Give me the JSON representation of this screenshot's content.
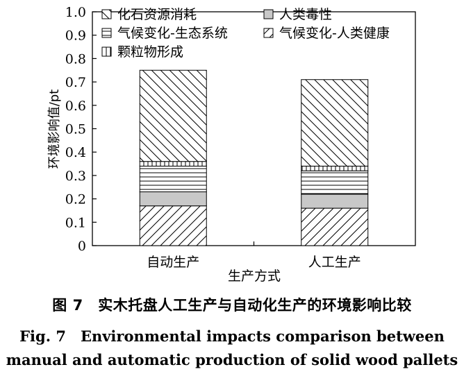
{
  "chart_data": {
    "type": "bar",
    "stacked": true,
    "categories": [
      "自动生产",
      "人工生产"
    ],
    "series": [
      {
        "name": "气候变化-人类健康",
        "pattern": "diag-right",
        "values": [
          0.17,
          0.16
        ]
      },
      {
        "name": "人类毒性",
        "pattern": "gray",
        "values": [
          0.06,
          0.06
        ]
      },
      {
        "name": "气候变化-生态系统",
        "pattern": "hlines",
        "values": [
          0.11,
          0.1
        ]
      },
      {
        "name": "颗粒物形成",
        "pattern": "vlines",
        "values": [
          0.02,
          0.02
        ]
      },
      {
        "name": "化石资源消耗",
        "pattern": "diag-left",
        "values": [
          0.39,
          0.37
        ]
      }
    ],
    "legend_order": [
      "化石资源消耗",
      "人类毒性",
      "气候变化-生态系统",
      "气候变化-人类健康",
      "颗粒物形成"
    ],
    "ylim": [
      0,
      1.0
    ],
    "yticks": [
      "0",
      "0.1",
      "0.2",
      "0.3",
      "0.4",
      "0.5",
      "0.6",
      "0.7",
      "0.8",
      "0.9",
      "1.0"
    ],
    "xlabel": "生产方式",
    "ylabel": "环境影响值/pt",
    "legend_position": "top-left",
    "grid": false
  },
  "caption": {
    "cn": "图 7　实木托盘人工生产与自动化生产的环境影响比较",
    "en_line1": "Fig. 7　Environmental impacts comparison between",
    "en_line2": "manual and automatic production of solid wood pallets"
  },
  "colors": {
    "gray_fill": "#c8c8c8",
    "line": "#000000"
  }
}
